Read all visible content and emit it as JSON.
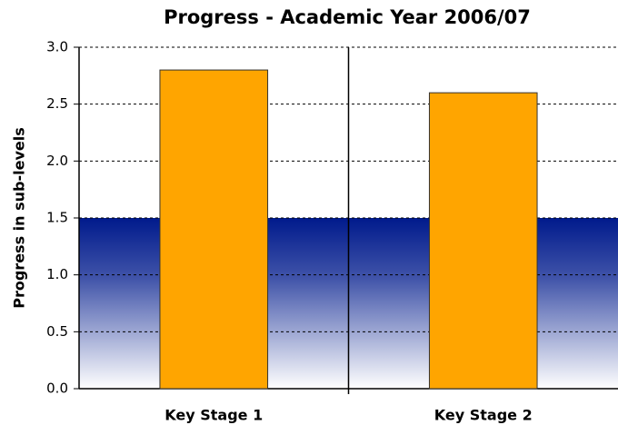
{
  "chart_data": {
    "type": "bar",
    "title": "Progress - Academic Year 2006/07",
    "y_label": "Progress in sub-levels",
    "categories": [
      "Key Stage 1",
      "Key Stage 2"
    ],
    "values": [
      2.8,
      2.6
    ],
    "color": "#ffa500",
    "ylim": [
      0,
      3
    ],
    "yticks": [
      {
        "value": 0,
        "label": "0.0"
      },
      0.5,
      {
        "value": 1,
        "label": "1.0"
      },
      1.5,
      {
        "value": 2,
        "label": "2.0"
      },
      2.5,
      {
        "value": 3,
        "label": "3.0"
      }
    ],
    "grid": true,
    "shaded_band": {
      "from": 0,
      "to": 1.5,
      "color": "#001a8c"
    }
  }
}
